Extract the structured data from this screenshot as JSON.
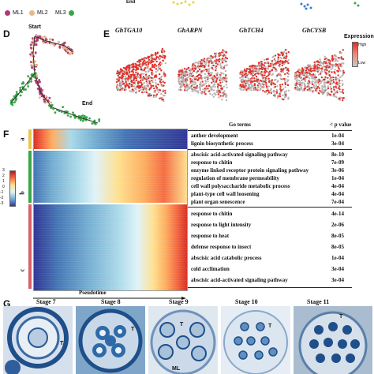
{
  "panels": {
    "D": "D",
    "E": "E",
    "F": "F",
    "G": "G"
  },
  "ml_legend": [
    {
      "label": "ML1",
      "color": "#b03a6e"
    },
    {
      "label": "ML2",
      "color": "#e8b88a"
    },
    {
      "label": "ML3",
      "color": "#3aa64a"
    }
  ],
  "top_end_label": "End",
  "trajectory": {
    "start_label": "Start",
    "end_label": "End"
  },
  "genes": [
    "GhTGA10",
    "GhARPN",
    "GhTCH4",
    "GhCYSB"
  ],
  "expression_legend": {
    "title": "Expression",
    "high": "High",
    "low": "Low"
  },
  "color_scale": {
    "ticks": [
      "3",
      "2",
      "1",
      "0",
      "-1",
      "-2",
      "-3"
    ]
  },
  "clusters": [
    {
      "label": "a",
      "color": "#e8c84a"
    },
    {
      "label": "b",
      "color": "#3aa64a"
    },
    {
      "label": "c",
      "color": "#d9606b"
    }
  ],
  "go_table": {
    "header_terms": "Go terms",
    "header_p": "< p value",
    "groups": [
      {
        "cluster": "a",
        "rows": [
          {
            "term": "anther development",
            "p": "1e-04"
          },
          {
            "term": "lignin biosynthetic process",
            "p": "3e-04"
          }
        ]
      },
      {
        "cluster": "b",
        "rows": [
          {
            "term": "abscisic acid-activated signaling pathway",
            "p": "8e-10"
          },
          {
            "term": "response to chitin",
            "p": "7e-09"
          },
          {
            "term": "enzyme linked receptor protein signaling pathway",
            "p": "3e-06"
          },
          {
            "term": "regulation of membrane permeability",
            "p": "1e-04"
          },
          {
            "term": "cell wall polysaccharide metabolic process",
            "p": "4e-04"
          },
          {
            "term": "plant-type cell wall loosening",
            "p": "4e-04"
          },
          {
            "term": "plant organ senescence",
            "p": "7e-04"
          }
        ]
      },
      {
        "cluster": "c",
        "rows": [
          {
            "term": "response to chitin",
            "p": "4e-14"
          },
          {
            "term": "response to light intensity",
            "p": "2e-06"
          },
          {
            "term": "response to heat",
            "p": "8e-05"
          },
          {
            "term": "defense response to insect",
            "p": "8e-05"
          },
          {
            "term": "abscisic acid catabolic process",
            "p": "1e-04"
          },
          {
            "term": "cold acclimation",
            "p": "3e-04"
          },
          {
            "term": "abscisic acid-activated signaling pathway",
            "p": "3e-04"
          }
        ]
      }
    ]
  },
  "pseudotime_label": "Pseudotime",
  "stages": [
    "Stage 7",
    "Stage 8",
    "Stage 9",
    "Stage 10",
    "Stage 11"
  ],
  "stage_markers": [
    "T",
    "T",
    "ML",
    "T"
  ]
}
